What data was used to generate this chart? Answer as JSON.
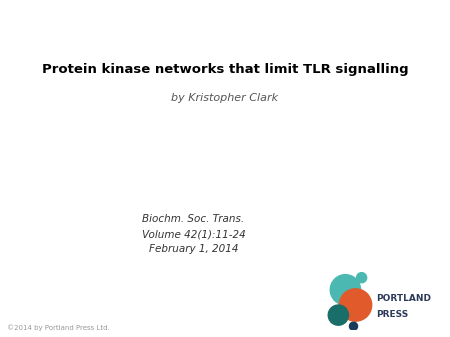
{
  "title": "Protein kinase networks that limit TLR signalling",
  "author": "by Kristopher Clark",
  "journal_line1": "Biochm. Soc. Trans.",
  "journal_line2": "Volume 42(1):11-24",
  "journal_line3": "February 1, 2014",
  "copyright": "©2014 by Portland Press Ltd.",
  "portland_press_line1": "PORTLAND",
  "portland_press_line2": "PRESS",
  "bg_color": "#ffffff",
  "title_color": "#000000",
  "author_color": "#555555",
  "journal_color": "#333333",
  "copyright_color": "#999999",
  "portland_press_color": "#2d3a5a",
  "circle_teal": "#4bb8b2",
  "circle_orange": "#e05a2b",
  "circle_dark_teal": "#1a6e6a",
  "circle_dark_blue": "#1a3a5a",
  "circle_small_teal": "#4bb8b2"
}
